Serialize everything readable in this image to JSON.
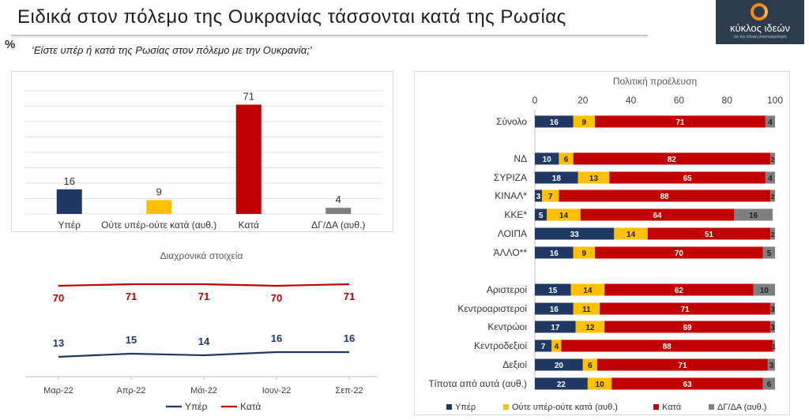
{
  "header": {
    "title": "Ειδικά στον πόλεμο της Ουκρανίας τάσσονται κατά της Ρωσίας",
    "percent_sign": "%",
    "question": "‘Είστε υπέρ ή κατά της Ρωσίας στον πόλεμο με την Ουκρανία;’"
  },
  "logo": {
    "name": "κύκλος ιδεών",
    "tagline": "για την εθνική ανασυγκρότηση"
  },
  "colors": {
    "yper": "#1f3864",
    "oute": "#ffc000",
    "kata": "#c00000",
    "dg": "#7f7f7f"
  },
  "chart_data": [
    {
      "type": "bar",
      "categories": [
        "Υπέρ",
        "Ούτε υπέρ-ούτε κατά (αυθ.)",
        "Κατά",
        "ΔΓ/ΔΑ (αυθ.)"
      ],
      "values": [
        16,
        9,
        71,
        4
      ],
      "ylim": [
        0,
        80
      ],
      "grid": true
    },
    {
      "type": "line",
      "title": "Διαχρονικά στοιχεία",
      "categories": [
        "Μαρ-22",
        "Απρ-22",
        "Μάι-22",
        "Ιουν-22",
        "Σεπ-22"
      ],
      "series": [
        {
          "name": "Υπέρ",
          "values": [
            13,
            15,
            14,
            16,
            16
          ]
        },
        {
          "name": "Κατά",
          "values": [
            70,
            71,
            71,
            70,
            71
          ]
        }
      ],
      "legend": "bottom"
    },
    {
      "type": "bar",
      "orientation": "horizontal",
      "stacked": true,
      "title": "Πολιτική προέλευση",
      "xlim": [
        0,
        100
      ],
      "xticks": [
        0,
        20,
        40,
        60,
        80,
        100
      ],
      "categories": [
        "Σύνολο",
        "ΝΔ",
        "ΣΥΡΙΖΑ",
        "ΚΙΝΑΛ*",
        "ΚΚΕ*",
        "ΛΟΙΠΑ",
        "ΆΛΛΟ**",
        "Αριστεροί",
        "Κεντροαριστεροί",
        "Κεντρώοι",
        "Κεντροδεξιοί",
        "Δεξιοί",
        "Τίποτα από αυτά (αυθ.)"
      ],
      "series": [
        {
          "name": "Υπέρ",
          "values": [
            16,
            10,
            18,
            3,
            5,
            33,
            16,
            15,
            16,
            17,
            7,
            20,
            22
          ]
        },
        {
          "name": "Ούτε υπέρ-ούτε κατά (αυθ.)",
          "values": [
            9,
            6,
            13,
            7,
            14,
            14,
            9,
            14,
            11,
            12,
            4,
            6,
            10
          ]
        },
        {
          "name": "Κατά",
          "values": [
            71,
            82,
            65,
            88,
            64,
            51,
            70,
            62,
            71,
            69,
            88,
            71,
            63
          ]
        },
        {
          "name": "ΔΓ/ΔΑ (αυθ.)",
          "values": [
            4,
            2,
            4,
            2,
            16,
            2,
            5,
            10,
            3,
            3,
            1,
            3,
            6
          ]
        }
      ],
      "legend": "bottom"
    }
  ]
}
